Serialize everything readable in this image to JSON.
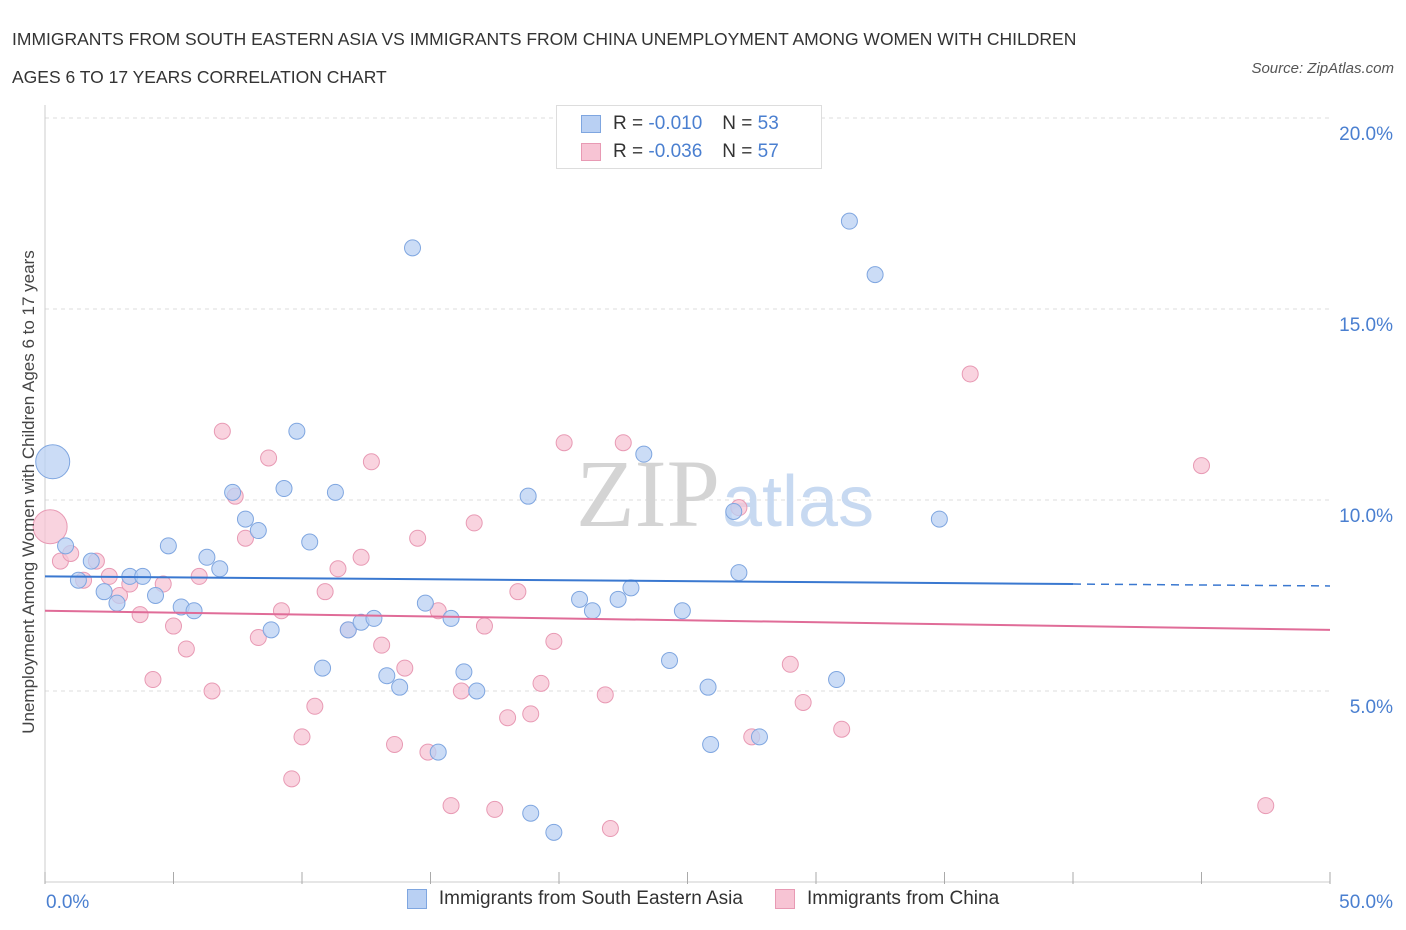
{
  "title_line1": "IMMIGRANTS FROM SOUTH EASTERN ASIA VS IMMIGRANTS FROM CHINA UNEMPLOYMENT AMONG WOMEN WITH CHILDREN",
  "title_line2": "AGES 6 TO 17 YEARS CORRELATION CHART",
  "source": "Source: ZipAtlas.com",
  "watermark": {
    "zip": "ZIP",
    "atlas": "atlas"
  },
  "legend_top": {
    "r_label": "R =",
    "n_label": "N =",
    "series": [
      {
        "r": "-0.010",
        "n": "53"
      },
      {
        "r": "-0.036",
        "n": "57"
      }
    ]
  },
  "colors": {
    "blue_fill": "#b9d0f3",
    "blue_stroke": "#7fa6e0",
    "blue_line": "#3a78d0",
    "pink_fill": "#f7c4d4",
    "pink_stroke": "#e89ab4",
    "pink_line": "#e06c98",
    "axis_label": "#4a7fd0",
    "grid": "#dddddd"
  },
  "chart_data": {
    "type": "scatter",
    "title": "IMMIGRANTS FROM SOUTH EASTERN ASIA VS IMMIGRANTS FROM CHINA UNEMPLOYMENT AMONG WOMEN WITH CHILDREN AGES 6 TO 17 YEARS CORRELATION CHART",
    "xlabel": "",
    "ylabel": "Unemployment Among Women with Children Ages 6 to 17 years",
    "xlim": [
      0,
      50
    ],
    "ylim": [
      0,
      20
    ],
    "x_tick_labels": [
      "0.0%",
      "50.0%"
    ],
    "y_ticks": [
      5,
      10,
      15,
      20
    ],
    "y_tick_labels": [
      "5.0%",
      "10.0%",
      "15.0%",
      "20.0%"
    ],
    "grid": true,
    "legend_position": "top-center",
    "series": [
      {
        "name": "Immigrants from South Eastern Asia",
        "color": "#b9d0f3",
        "trend": {
          "x": [
            0,
            40
          ],
          "y": [
            8.0,
            7.8
          ],
          "dashed_extension_to": 50
        },
        "points": [
          {
            "x": 0.3,
            "y": 11.0,
            "big": true
          },
          {
            "x": 0.8,
            "y": 8.8
          },
          {
            "x": 1.3,
            "y": 7.9
          },
          {
            "x": 1.8,
            "y": 8.4
          },
          {
            "x": 2.3,
            "y": 7.6
          },
          {
            "x": 2.8,
            "y": 7.3
          },
          {
            "x": 3.3,
            "y": 8.0
          },
          {
            "x": 3.8,
            "y": 8.0
          },
          {
            "x": 4.3,
            "y": 7.5
          },
          {
            "x": 4.8,
            "y": 8.8
          },
          {
            "x": 5.3,
            "y": 7.2
          },
          {
            "x": 5.8,
            "y": 7.1
          },
          {
            "x": 6.3,
            "y": 8.5
          },
          {
            "x": 6.8,
            "y": 8.2
          },
          {
            "x": 7.3,
            "y": 10.2
          },
          {
            "x": 7.8,
            "y": 9.5
          },
          {
            "x": 8.3,
            "y": 9.2
          },
          {
            "x": 8.8,
            "y": 6.6
          },
          {
            "x": 9.3,
            "y": 10.3
          },
          {
            "x": 9.8,
            "y": 11.8
          },
          {
            "x": 10.3,
            "y": 8.9
          },
          {
            "x": 10.8,
            "y": 5.6
          },
          {
            "x": 11.3,
            "y": 10.2
          },
          {
            "x": 11.8,
            "y": 6.6
          },
          {
            "x": 12.3,
            "y": 6.8
          },
          {
            "x": 12.8,
            "y": 6.9
          },
          {
            "x": 13.3,
            "y": 5.4
          },
          {
            "x": 13.8,
            "y": 5.1
          },
          {
            "x": 14.3,
            "y": 16.6
          },
          {
            "x": 14.8,
            "y": 7.3
          },
          {
            "x": 15.3,
            "y": 3.4
          },
          {
            "x": 15.8,
            "y": 6.9
          },
          {
            "x": 16.3,
            "y": 5.5
          },
          {
            "x": 16.8,
            "y": 5.0
          },
          {
            "x": 18.8,
            "y": 10.1
          },
          {
            "x": 18.9,
            "y": 1.8
          },
          {
            "x": 19.8,
            "y": 1.3
          },
          {
            "x": 20.8,
            "y": 7.4
          },
          {
            "x": 21.3,
            "y": 7.1
          },
          {
            "x": 22.3,
            "y": 7.4
          },
          {
            "x": 22.8,
            "y": 7.7
          },
          {
            "x": 23.3,
            "y": 11.2
          },
          {
            "x": 24.3,
            "y": 5.8
          },
          {
            "x": 24.8,
            "y": 7.1
          },
          {
            "x": 25.8,
            "y": 5.1
          },
          {
            "x": 25.9,
            "y": 3.6
          },
          {
            "x": 26.8,
            "y": 9.7
          },
          {
            "x": 27.0,
            "y": 8.1
          },
          {
            "x": 27.8,
            "y": 3.8
          },
          {
            "x": 30.8,
            "y": 5.3
          },
          {
            "x": 31.3,
            "y": 17.3
          },
          {
            "x": 32.3,
            "y": 15.9
          },
          {
            "x": 34.8,
            "y": 9.5
          }
        ]
      },
      {
        "name": "Immigrants from China",
        "color": "#f7c4d4",
        "trend": {
          "x": [
            0,
            50
          ],
          "y": [
            7.1,
            6.6
          ]
        },
        "points": [
          {
            "x": 0.2,
            "y": 9.3,
            "big": true
          },
          {
            "x": 0.6,
            "y": 8.4
          },
          {
            "x": 1.0,
            "y": 8.6
          },
          {
            "x": 1.5,
            "y": 7.9
          },
          {
            "x": 2.0,
            "y": 8.4
          },
          {
            "x": 2.5,
            "y": 8.0
          },
          {
            "x": 2.9,
            "y": 7.5
          },
          {
            "x": 3.3,
            "y": 7.8
          },
          {
            "x": 3.7,
            "y": 7.0
          },
          {
            "x": 4.2,
            "y": 5.3
          },
          {
            "x": 4.6,
            "y": 7.8
          },
          {
            "x": 5.0,
            "y": 6.7
          },
          {
            "x": 5.5,
            "y": 6.1
          },
          {
            "x": 6.0,
            "y": 8.0
          },
          {
            "x": 6.5,
            "y": 5.0
          },
          {
            "x": 6.9,
            "y": 11.8
          },
          {
            "x": 7.4,
            "y": 10.1
          },
          {
            "x": 7.8,
            "y": 9.0
          },
          {
            "x": 8.3,
            "y": 6.4
          },
          {
            "x": 8.7,
            "y": 11.1
          },
          {
            "x": 9.2,
            "y": 7.1
          },
          {
            "x": 9.6,
            "y": 2.7
          },
          {
            "x": 10.0,
            "y": 3.8
          },
          {
            "x": 10.5,
            "y": 4.6
          },
          {
            "x": 10.9,
            "y": 7.6
          },
          {
            "x": 11.4,
            "y": 8.2
          },
          {
            "x": 11.8,
            "y": 6.6
          },
          {
            "x": 12.3,
            "y": 8.5
          },
          {
            "x": 12.7,
            "y": 11.0
          },
          {
            "x": 13.1,
            "y": 6.2
          },
          {
            "x": 13.6,
            "y": 3.6
          },
          {
            "x": 14.0,
            "y": 5.6
          },
          {
            "x": 14.5,
            "y": 9.0
          },
          {
            "x": 14.9,
            "y": 3.4
          },
          {
            "x": 15.3,
            "y": 7.1
          },
          {
            "x": 15.8,
            "y": 2.0
          },
          {
            "x": 16.2,
            "y": 5.0
          },
          {
            "x": 16.7,
            "y": 9.4
          },
          {
            "x": 17.1,
            "y": 6.7
          },
          {
            "x": 17.5,
            "y": 1.9
          },
          {
            "x": 18.0,
            "y": 4.3
          },
          {
            "x": 18.4,
            "y": 7.6
          },
          {
            "x": 18.9,
            "y": 4.4
          },
          {
            "x": 19.3,
            "y": 5.2
          },
          {
            "x": 19.8,
            "y": 6.3
          },
          {
            "x": 20.2,
            "y": 11.5
          },
          {
            "x": 21.8,
            "y": 4.9
          },
          {
            "x": 22.0,
            "y": 1.4
          },
          {
            "x": 22.5,
            "y": 11.5
          },
          {
            "x": 27.0,
            "y": 9.8
          },
          {
            "x": 27.5,
            "y": 3.8
          },
          {
            "x": 29.0,
            "y": 5.7
          },
          {
            "x": 29.5,
            "y": 4.7
          },
          {
            "x": 31.0,
            "y": 4.0
          },
          {
            "x": 36.0,
            "y": 13.3
          },
          {
            "x": 45.0,
            "y": 10.9
          },
          {
            "x": 47.5,
            "y": 2.0
          }
        ]
      }
    ]
  }
}
